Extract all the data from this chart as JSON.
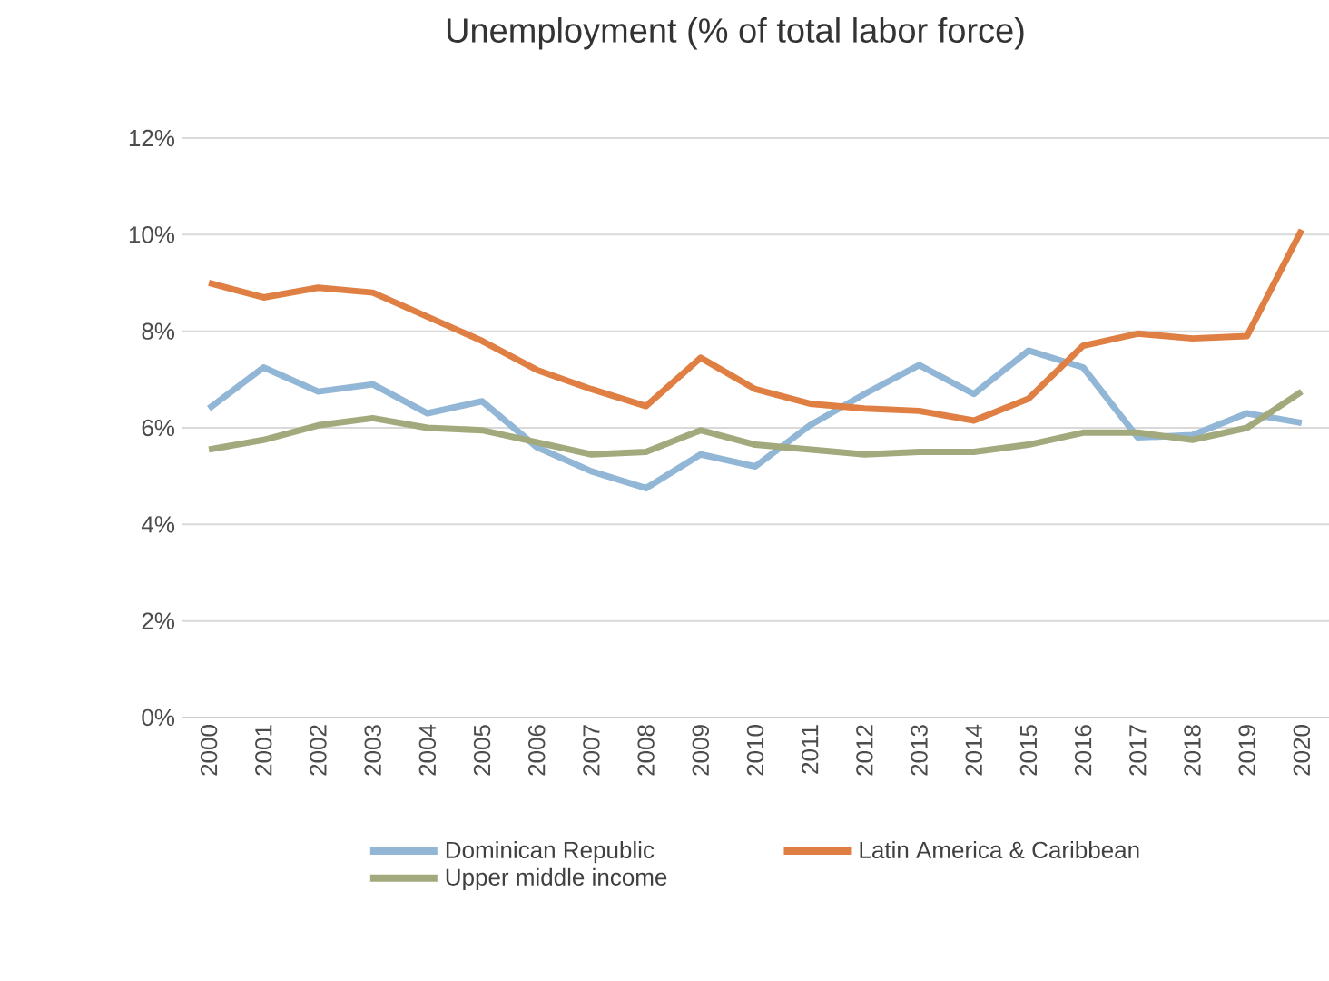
{
  "chart_data": {
    "type": "line",
    "title": "Unemployment (% of total labor force)",
    "categories": [
      "2000",
      "2001",
      "2002",
      "2003",
      "2004",
      "2005",
      "2006",
      "2007",
      "2008",
      "2009",
      "2010",
      "2011",
      "2012",
      "2013",
      "2014",
      "2015",
      "2016",
      "2017",
      "2018",
      "2019",
      "2020"
    ],
    "series": [
      {
        "name": "Dominican Republic",
        "color": "#92b6d5",
        "values": [
          6.4,
          7.25,
          6.75,
          6.9,
          6.3,
          6.55,
          5.6,
          5.1,
          4.75,
          5.45,
          5.2,
          6.05,
          6.7,
          7.3,
          6.7,
          7.6,
          7.25,
          5.8,
          5.85,
          6.3,
          6.1
        ]
      },
      {
        "name": "Latin America & Caribbean",
        "color": "#e07f44",
        "values": [
          9.0,
          8.7,
          8.9,
          8.8,
          8.3,
          7.8,
          7.2,
          6.8,
          6.45,
          7.45,
          6.8,
          6.5,
          6.4,
          6.35,
          6.15,
          6.6,
          7.7,
          7.95,
          7.85,
          7.9,
          10.1
        ]
      },
      {
        "name": "Upper middle income",
        "color": "#a2aa7d",
        "values": [
          5.55,
          5.75,
          6.05,
          6.2,
          6.0,
          5.95,
          5.7,
          5.45,
          5.5,
          5.95,
          5.65,
          5.55,
          5.45,
          5.5,
          5.5,
          5.65,
          5.9,
          5.9,
          5.75,
          6.0,
          6.75
        ]
      }
    ],
    "ylim": [
      0,
      12
    ],
    "yticks": [
      {
        "value": 0,
        "label": "0%"
      },
      {
        "value": 2,
        "label": "2%"
      },
      {
        "value": 4,
        "label": "4%"
      },
      {
        "value": 6,
        "label": "6%"
      },
      {
        "value": 8,
        "label": "8%"
      },
      {
        "value": 10,
        "label": "10%"
      },
      {
        "value": 12,
        "label": "12%"
      }
    ],
    "grid": "y",
    "legend": "bottom",
    "marker": "none",
    "line_style": "solid"
  }
}
